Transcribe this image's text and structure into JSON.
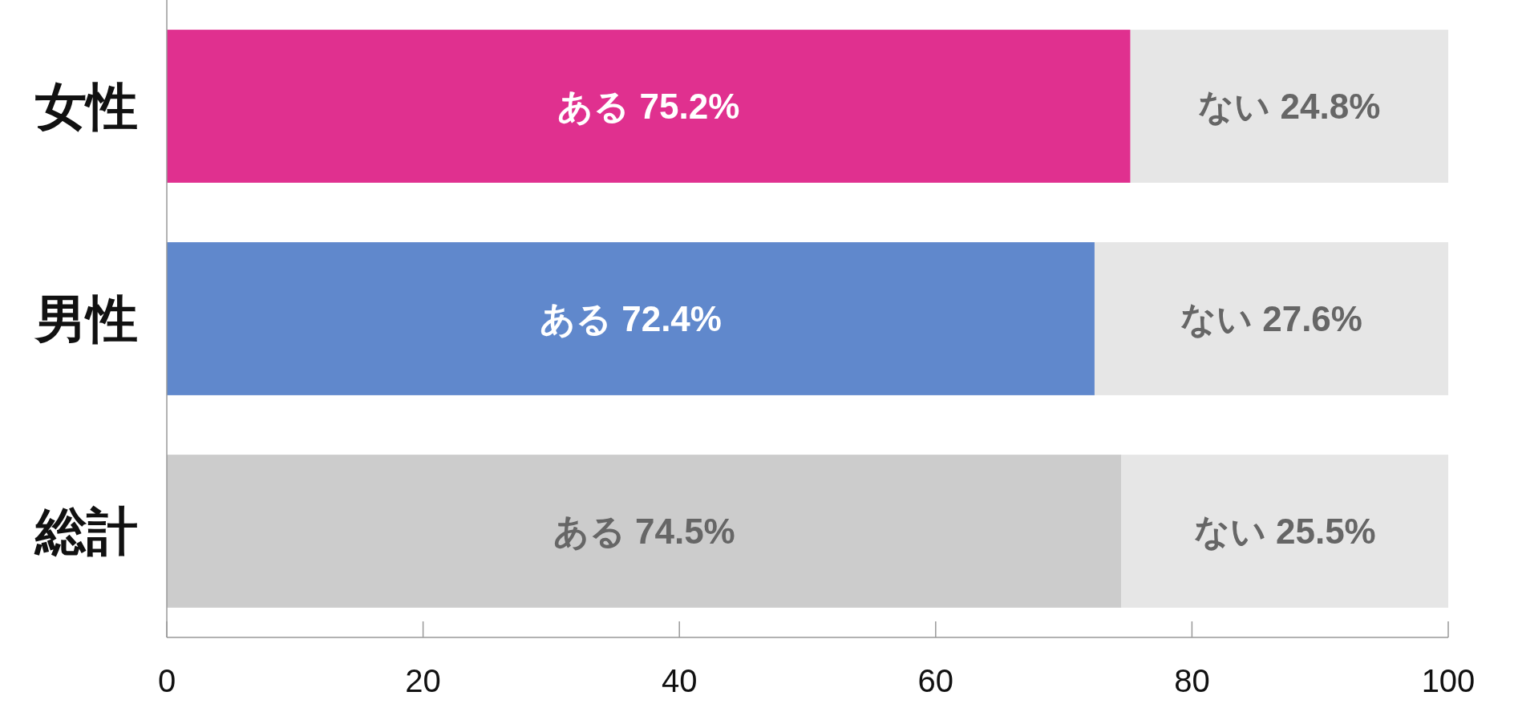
{
  "chart_data": {
    "type": "bar",
    "orientation": "horizontal",
    "stacked": true,
    "categories": [
      "女性",
      "男性",
      "総計"
    ],
    "series": [
      {
        "colors": [
          "#e0308f",
          "#6088cc",
          "#cccccc"
        ],
        "values": [
          75.2,
          72.4,
          74.5
        ],
        "value_labels": [
          "ある 75.2%",
          "ある 72.4%",
          "ある 74.5%"
        ]
      },
      {
        "colors": [
          "#e6e6e6",
          "#e6e6e6",
          "#e6e6e6"
        ],
        "values": [
          24.8,
          27.6,
          25.5
        ],
        "value_labels": [
          "ない 24.8%",
          "ない 27.6%",
          "ない 25.5%"
        ]
      }
    ],
    "xlim": [
      0,
      100
    ],
    "xticks": [
      0,
      20,
      40,
      60,
      80,
      100
    ],
    "grid": false
  }
}
